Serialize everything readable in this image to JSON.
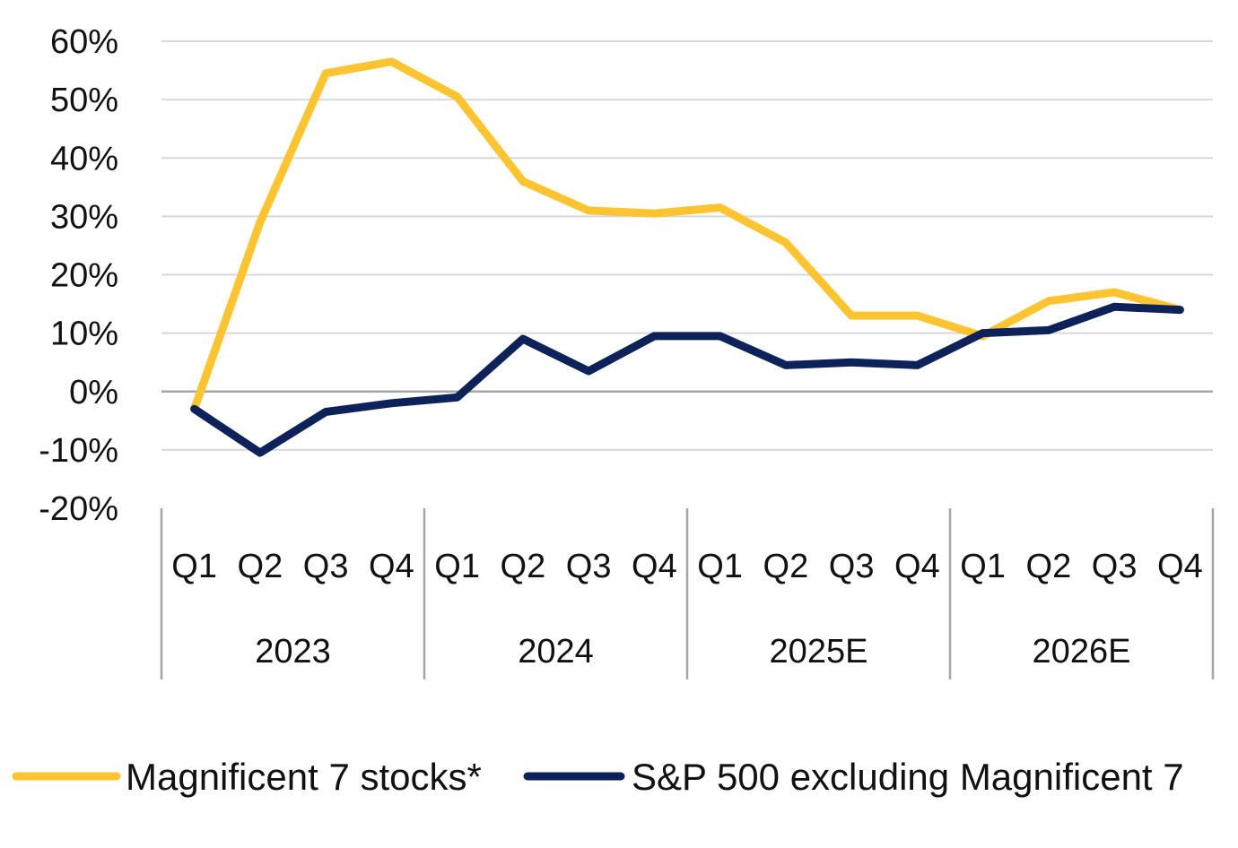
{
  "chart_data": {
    "type": "line",
    "title": "",
    "xlabel": "",
    "ylabel": "",
    "ylim": [
      -20,
      60
    ],
    "yticks": [
      -20,
      -10,
      0,
      10,
      20,
      30,
      40,
      50,
      60
    ],
    "ytick_labels": [
      "-20%",
      "-10%",
      "0%",
      "10%",
      "20%",
      "30%",
      "40%",
      "50%",
      "60%"
    ],
    "categories": [
      "Q1",
      "Q2",
      "Q3",
      "Q4",
      "Q1",
      "Q2",
      "Q3",
      "Q4",
      "Q1",
      "Q2",
      "Q3",
      "Q4",
      "Q1",
      "Q2",
      "Q3",
      "Q4"
    ],
    "groups": [
      {
        "label": "2023",
        "count": 4
      },
      {
        "label": "2024",
        "count": 4
      },
      {
        "label": "2025E",
        "count": 4
      },
      {
        "label": "2026E",
        "count": 4
      }
    ],
    "grid": true,
    "legend_position": "bottom",
    "series": [
      {
        "name": "Magnificent 7 stocks*",
        "color": "#FDC431",
        "values": [
          -3,
          29,
          54.5,
          56.5,
          50.5,
          36,
          31,
          30.5,
          31.5,
          25.5,
          13,
          13,
          9.5,
          15.5,
          17,
          14
        ]
      },
      {
        "name": "S&P 500 excluding Magnificent 7",
        "color": "#0D2259",
        "values": [
          -3,
          -10.5,
          -3.5,
          -2,
          -1,
          9,
          3.5,
          9.5,
          9.5,
          4.5,
          5,
          4.5,
          10,
          10.5,
          14.5,
          14
        ]
      }
    ],
    "colors": {
      "grid": "#d9d9d9",
      "zero_line": "#a6a6a6",
      "axis": "#a6a6a6"
    }
  }
}
